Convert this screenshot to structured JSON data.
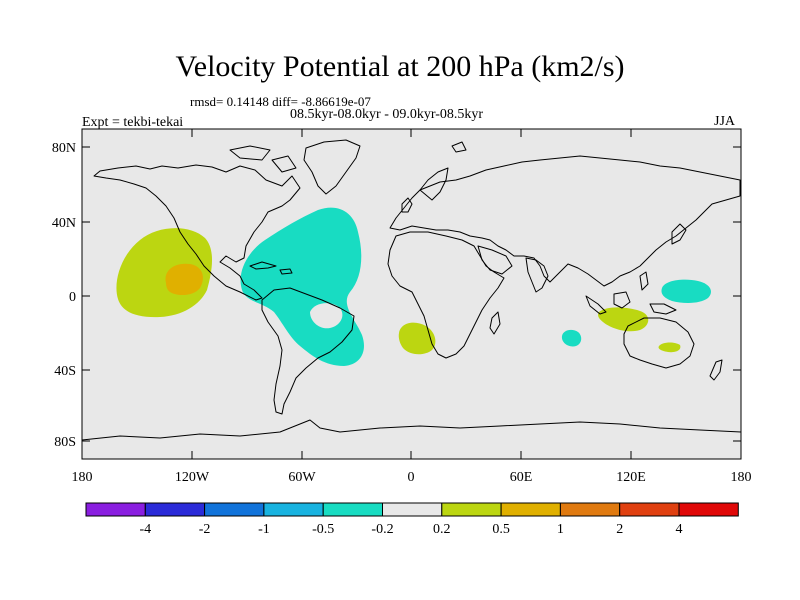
{
  "header": {
    "title": "Velocity Potential at 200 hPa (km2/s)",
    "stats": "rmsd= 0.14148 diff= -8.86619e-07",
    "period": "08.5kyr-08.0kyr - 09.0kyr-08.5kyr",
    "experiment": "Expt = tekbi-tekai",
    "season": "JJA"
  },
  "axes": {
    "y_ticks": [
      "80N",
      "40N",
      "0",
      "40S",
      "80S"
    ],
    "x_ticks": [
      "180",
      "120W",
      "60W",
      "0",
      "60E",
      "120E",
      "180"
    ]
  },
  "colorbar": {
    "colors": [
      "#8a1ee0",
      "#2b2bd8",
      "#1173da",
      "#18b3e0",
      "#18dcc2",
      "#e8e8e8",
      "#bcd611",
      "#e0b000",
      "#e07a10",
      "#e04010",
      "#e00808"
    ],
    "labels": [
      "-4",
      "-2",
      "-1",
      "-0.5",
      "-0.2",
      "0.2",
      "0.5",
      "1",
      "2",
      "4"
    ]
  },
  "colors": {
    "map_background": "#e8e8e8",
    "coastline": "#000000"
  }
}
